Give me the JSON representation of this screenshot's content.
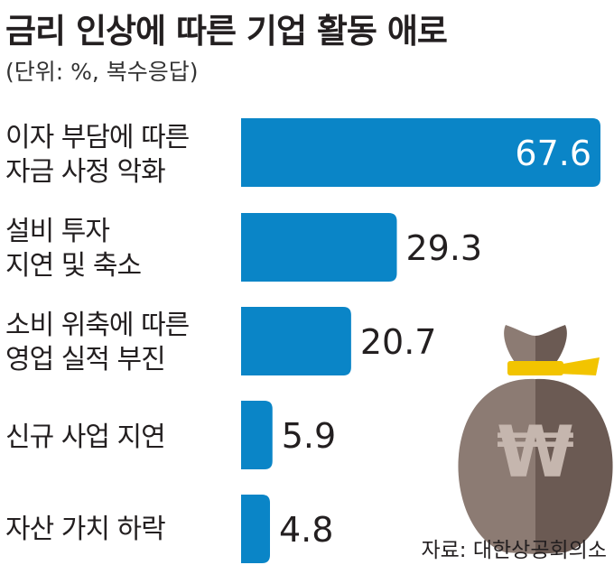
{
  "title": "금리 인상에 따른 기업 활동 애로",
  "unit": "(단위: %, 복수응답)",
  "source": "자료: 대한상공회의소",
  "chart_data": {
    "type": "bar",
    "orientation": "horizontal",
    "categories": [
      "이자 부담에 따른\n자금 사정 악화",
      "설비 투자\n지연 및 축소",
      "소비 위축에 따른\n영업 실적 부진",
      "신규 사업 지연",
      "자산 가치 하락"
    ],
    "values": [
      67.6,
      29.3,
      20.7,
      5.9,
      4.8
    ],
    "value_labels": [
      "67.6",
      "29.3",
      "20.7",
      "5.9",
      "4.8"
    ],
    "xlim": [
      0,
      67.6
    ],
    "grid": false,
    "bar_color": "#0a85c7"
  },
  "illustration": {
    "icon": "money-bag-icon",
    "symbol": "₩",
    "colors": {
      "bag_left": "#8c7b73",
      "bag_right": "#6b5a53",
      "tie": "#f2c400",
      "symbol": "#c5b6ae"
    }
  }
}
